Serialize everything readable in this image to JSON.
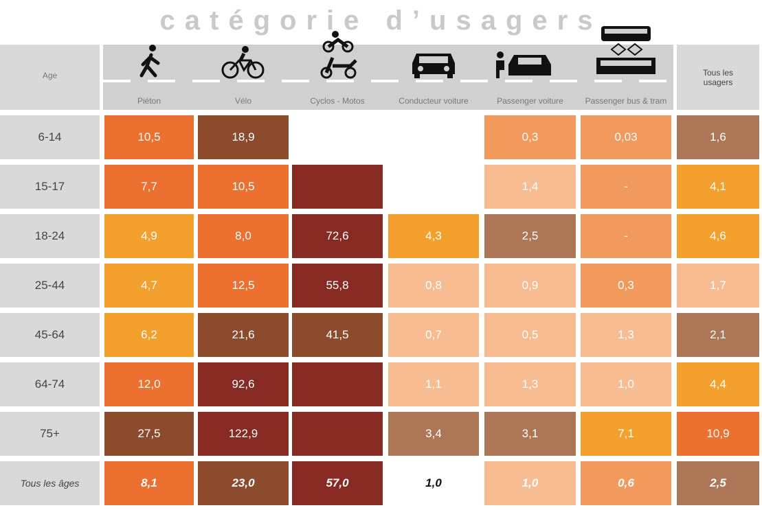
{
  "title": "catégorie d’usagers",
  "table": {
    "header": [
      "Age",
      "Piéton",
      "Vélo",
      "Cyclos - Motos",
      "Conducteur voiture",
      "Passenger voiture",
      "Passenger bus & tram",
      "Tous les usagers"
    ],
    "rows": [
      [
        "6-14",
        "10,5",
        "18,9",
        null,
        null,
        "0,3",
        "0,03",
        "1,6"
      ],
      [
        "15-17",
        "7,7",
        "10,5",
        null,
        null,
        "1,4",
        "-",
        "4,1"
      ],
      [
        "18-24",
        "4,9",
        "8,0",
        "72,6",
        "4,3",
        "2,5",
        "-",
        "4,6"
      ],
      [
        "25-44",
        "4,7",
        "12,5",
        "55,8",
        "0,8",
        "0,9",
        "0,3",
        "1,7"
      ],
      [
        "45-64",
        "6,2",
        "21,6",
        "41,5",
        "0,7",
        "0,5",
        "1,3",
        "2,1"
      ],
      [
        "64-74",
        "12,0",
        "92,6",
        null,
        "1,1",
        "1,3",
        "1,0",
        "4,4"
      ],
      [
        "75+",
        "27,5",
        "122,9",
        null,
        "3,4",
        "3,1",
        "7,1",
        "10,9"
      ],
      [
        "Tous les âges",
        "8,1",
        "23,0",
        "57,0",
        "1,0",
        "1,0",
        "0,6",
        "2,5"
      ]
    ],
    "palette": {
      "O": "#ec7030",
      "Y": "#f3a02e",
      "B": "#8b4b2c",
      "R": "#862a23",
      "P": "#f8bc93",
      "M": "#f29a5e",
      "T": "#ad7656",
      "W": "#ffffff",
      "G": "#d9d9d9"
    },
    "shades": [
      [
        "G",
        "O",
        "B",
        "W",
        "W",
        "M",
        "M",
        "T"
      ],
      [
        "G",
        "O",
        "O",
        "R",
        "W",
        "P",
        "M",
        "Y"
      ],
      [
        "G",
        "Y",
        "O",
        "R",
        "Y",
        "T",
        "M",
        "Y"
      ],
      [
        "G",
        "Y",
        "O",
        "R",
        "P",
        "P",
        "M",
        "P"
      ],
      [
        "G",
        "Y",
        "B",
        "B",
        "P",
        "P",
        "P",
        "T"
      ],
      [
        "G",
        "O",
        "R",
        "R",
        "P",
        "P",
        "P",
        "Y"
      ],
      [
        "G",
        "B",
        "R",
        "R",
        "T",
        "T",
        "Y",
        "O"
      ],
      [
        "G",
        "O",
        "B",
        "R",
        "W",
        "P",
        "M",
        "T"
      ]
    ]
  }
}
